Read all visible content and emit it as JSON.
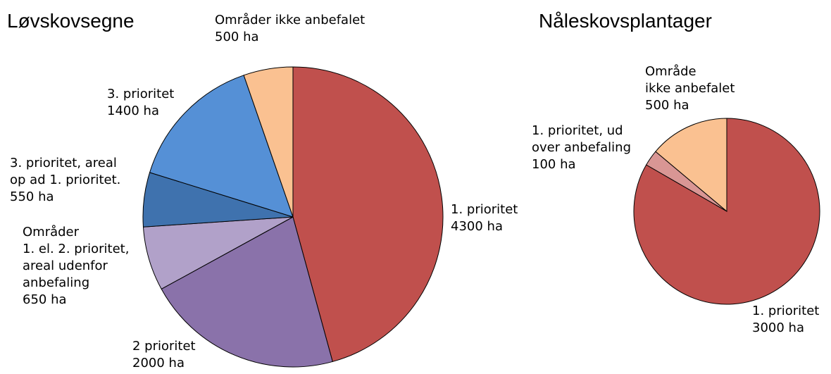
{
  "chart_data": [
    {
      "type": "pie",
      "title": "Løvskovsegne",
      "categories": [
        "1. prioritet",
        "2 prioritet",
        "Områder\n1. el. 2. prioritet,\nareal udenfor\nanbefaling",
        "3. prioritet, areal\nop ad 1. prioritet.",
        "3. prioritet",
        "Områder ikke anbefalet"
      ],
      "values": [
        4300,
        2000,
        650,
        550,
        1400,
        500
      ],
      "value_labels": [
        "4300 ha",
        "2000 ha",
        "650 ha",
        "550 ha",
        "1400 ha",
        "500 ha"
      ],
      "colors": [
        "#c0504d",
        "#8a72aa",
        "#b1a1c9",
        "#3f72ae",
        "#5590d6",
        "#fac191"
      ]
    },
    {
      "type": "pie",
      "title": "Nåleskovsplantager",
      "categories": [
        "1. prioritet",
        "1. prioritet, ud\nover anbefaling",
        "Område\nikke anbefalet"
      ],
      "values": [
        3000,
        100,
        500
      ],
      "value_labels": [
        "3000 ha",
        "100 ha",
        "500 ha"
      ],
      "colors": [
        "#c0504d",
        "#d99694",
        "#fac191"
      ]
    }
  ]
}
